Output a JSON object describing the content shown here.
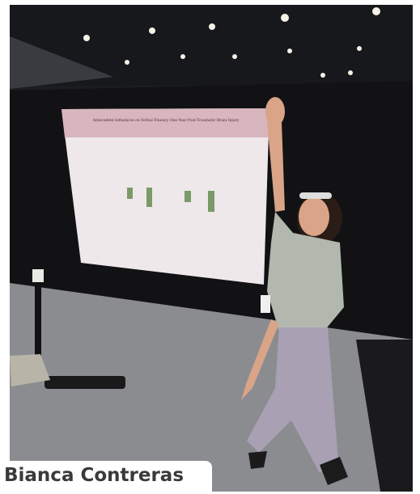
{
  "photo": {
    "poster_title": "Antecedent Influences on Verbal Fluency One Year Post-Traumatic Brain Injury"
  },
  "caption": {
    "name": "Bianca Contreras"
  }
}
